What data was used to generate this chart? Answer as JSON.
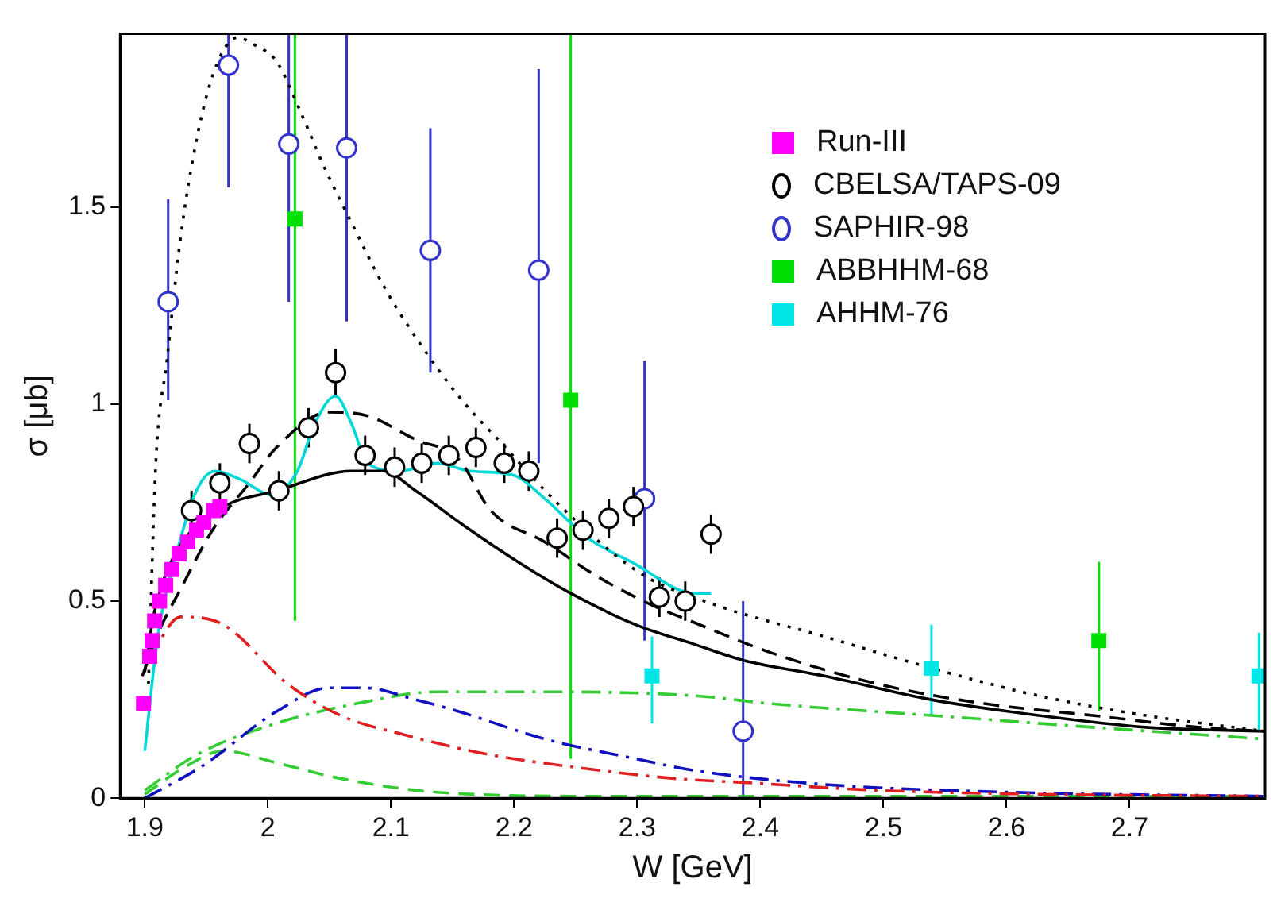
{
  "chart_data": {
    "type": "line",
    "xlabel": "W [GeV]",
    "ylabel": "σ [μb]",
    "xlim": [
      1.88,
      2.81
    ],
    "ylim": [
      0,
      1.94
    ],
    "xticks": [
      1.9,
      2,
      2.1,
      2.2,
      2.3,
      2.4,
      2.5,
      2.6,
      2.7
    ],
    "yticks": [
      0,
      0.5,
      1,
      1.5
    ],
    "grid": false,
    "legend": "top right",
    "series": [
      {
        "type": "line",
        "color": "#000000",
        "line_style": "solid",
        "x": [
          1.9,
          1.907,
          1.916,
          1.933,
          1.964,
          2.007,
          2.068,
          2.094,
          2.12,
          2.16,
          2.203,
          2.246,
          2.299,
          2.347,
          2.386,
          2.452,
          2.539,
          2.626,
          2.713,
          2.81
        ],
        "values": [
          0.32,
          0.46,
          0.56,
          0.66,
          0.74,
          0.78,
          0.83,
          0.83,
          0.78,
          0.69,
          0.6,
          0.52,
          0.44,
          0.39,
          0.35,
          0.31,
          0.25,
          0.21,
          0.18,
          0.17
        ]
      },
      {
        "type": "line",
        "color": "#000000",
        "line_style": "dashed",
        "x": [
          1.898,
          1.911,
          1.929,
          1.955,
          1.985,
          2.007,
          2.05,
          2.081,
          2.12,
          2.155,
          2.181,
          2.225,
          2.269,
          2.312,
          2.343,
          2.408,
          2.495,
          2.582,
          2.67,
          2.756,
          2.81
        ],
        "values": [
          0.31,
          0.42,
          0.53,
          0.68,
          0.8,
          0.89,
          0.98,
          0.97,
          0.91,
          0.86,
          0.73,
          0.65,
          0.56,
          0.49,
          0.45,
          0.37,
          0.29,
          0.24,
          0.21,
          0.18,
          0.17
        ]
      },
      {
        "type": "line",
        "color": "#000000",
        "line_style": "dotted",
        "x": [
          1.903,
          1.909,
          1.918,
          1.929,
          1.942,
          1.957,
          1.975,
          1.99,
          2.007,
          2.024,
          2.046,
          2.068,
          2.094,
          2.12,
          2.155,
          2.19,
          2.238,
          2.303,
          2.364,
          2.452,
          2.539,
          2.626,
          2.713,
          2.81
        ],
        "values": [
          0.29,
          0.85,
          1.11,
          1.42,
          1.67,
          1.85,
          1.93,
          1.91,
          1.87,
          1.76,
          1.6,
          1.46,
          1.3,
          1.17,
          1.02,
          0.9,
          0.74,
          0.57,
          0.49,
          0.41,
          0.33,
          0.26,
          0.21,
          0.17
        ]
      },
      {
        "type": "line",
        "color": "#00d8d8",
        "line_style": "solid",
        "x": [
          1.9,
          1.911,
          1.924,
          1.942,
          1.957,
          1.977,
          2.003,
          2.024,
          2.038,
          2.055,
          2.068,
          2.081,
          2.107,
          2.138,
          2.164,
          2.199,
          2.225,
          2.26,
          2.295,
          2.347,
          2.36
        ],
        "values": [
          0.12,
          0.42,
          0.6,
          0.78,
          0.83,
          0.81,
          0.77,
          0.83,
          0.95,
          1.02,
          0.95,
          0.85,
          0.83,
          0.85,
          0.83,
          0.82,
          0.76,
          0.66,
          0.6,
          0.52,
          0.52
        ]
      },
      {
        "type": "line",
        "color": "#e02020",
        "line_style": "dashdot",
        "x": [
          1.903,
          1.929,
          1.964,
          2.016,
          2.059,
          2.112,
          2.181,
          2.246,
          2.33,
          2.386,
          2.495,
          2.626,
          2.81
        ],
        "values": [
          0.35,
          0.46,
          0.44,
          0.29,
          0.21,
          0.16,
          0.11,
          0.08,
          0.05,
          0.04,
          0.02,
          0.01,
          0.005
        ]
      },
      {
        "type": "line",
        "color": "#1010c0",
        "line_style": "dashdot",
        "x": [
          1.9,
          1.946,
          2.007,
          2.05,
          2.079,
          2.12,
          2.155,
          2.225,
          2.299,
          2.347,
          2.452,
          2.604,
          2.81
        ],
        "values": [
          0,
          0.08,
          0.22,
          0.28,
          0.28,
          0.25,
          0.22,
          0.15,
          0.1,
          0.07,
          0.035,
          0.015,
          0.005
        ]
      },
      {
        "type": "line",
        "color": "#33cc33",
        "line_style": "dashdot",
        "x": [
          1.9,
          1.942,
          2.007,
          2.072,
          2.138,
          2.225,
          2.347,
          2.408,
          2.539,
          2.67,
          2.81
        ],
        "values": [
          0.02,
          0.11,
          0.19,
          0.24,
          0.27,
          0.27,
          0.26,
          0.24,
          0.21,
          0.18,
          0.15
        ]
      },
      {
        "type": "line",
        "color": "#33cc33",
        "line_style": "dashed",
        "x": [
          1.9,
          1.933,
          1.964,
          2.007,
          2.059,
          2.138,
          2.27,
          2.5,
          2.81
        ],
        "values": [
          0.01,
          0.08,
          0.12,
          0.09,
          0.05,
          0.015,
          0.005,
          0.005,
          0.005
        ]
      },
      {
        "name": "Run-III",
        "type": "scatter",
        "marker": "square",
        "color": "#ff00ff",
        "x": [
          1.899,
          1.904,
          1.906,
          1.908,
          1.912,
          1.917,
          1.922,
          1.928,
          1.935,
          1.942,
          1.948,
          1.956,
          1.961
        ],
        "values": [
          0.24,
          0.36,
          0.4,
          0.45,
          0.5,
          0.54,
          0.58,
          0.62,
          0.65,
          0.68,
          0.7,
          0.73,
          0.74
        ]
      },
      {
        "name": "CBELSA/TAPS-09",
        "type": "scatter",
        "marker": "circle",
        "color": "#000000",
        "x": [
          1.938,
          1.961,
          1.985,
          2.009,
          2.033,
          2.055,
          2.079,
          2.103,
          2.125,
          2.147,
          2.169,
          2.192,
          2.212,
          2.235,
          2.256,
          2.277,
          2.297,
          2.318,
          2.339,
          2.36
        ],
        "values": [
          0.73,
          0.8,
          0.9,
          0.78,
          0.94,
          1.08,
          0.87,
          0.84,
          0.85,
          0.87,
          0.89,
          0.85,
          0.83,
          0.66,
          0.68,
          0.71,
          0.74,
          0.51,
          0.5,
          0.67
        ],
        "errors": [
          0.05,
          0.05,
          0.05,
          0.05,
          0.05,
          0.06,
          0.05,
          0.05,
          0.05,
          0.05,
          0.05,
          0.05,
          0.05,
          0.05,
          0.05,
          0.05,
          0.05,
          0.05,
          0.05,
          0.05
        ]
      },
      {
        "name": "SAPHIR-98",
        "type": "scatter",
        "marker": "circle",
        "color": "#3333cc",
        "x": [
          1.919,
          1.968,
          2.017,
          2.064,
          2.132,
          2.22,
          2.306,
          2.386
        ],
        "values": [
          1.26,
          1.86,
          1.66,
          1.65,
          1.39,
          1.34,
          0.76,
          0.17
        ],
        "errors": [
          [
            1.01,
            1.52
          ],
          [
            1.55,
            1.94
          ],
          [
            1.26,
            1.94
          ],
          [
            1.21,
            1.94
          ],
          [
            1.08,
            1.7
          ],
          [
            0.85,
            1.85
          ],
          [
            0.4,
            1.11
          ],
          [
            0,
            0.5
          ]
        ]
      },
      {
        "name": "ABBHHM-68",
        "type": "scatter",
        "marker": "square",
        "color": "#00e000",
        "x": [
          2.022,
          2.246,
          2.675
        ],
        "values": [
          1.47,
          1.01,
          0.4
        ],
        "errors": [
          [
            0.45,
            1.94
          ],
          [
            0.1,
            1.94
          ],
          [
            0.22,
            0.6
          ]
        ]
      },
      {
        "name": "AHHM-76",
        "type": "scatter",
        "marker": "square",
        "color": "#00e5e5",
        "x": [
          2.312,
          2.539,
          2.805
        ],
        "values": [
          0.31,
          0.33,
          0.31
        ],
        "errors": [
          [
            0.19,
            0.41
          ],
          [
            0.21,
            0.44
          ],
          [
            0.17,
            0.42
          ]
        ]
      }
    ]
  }
}
